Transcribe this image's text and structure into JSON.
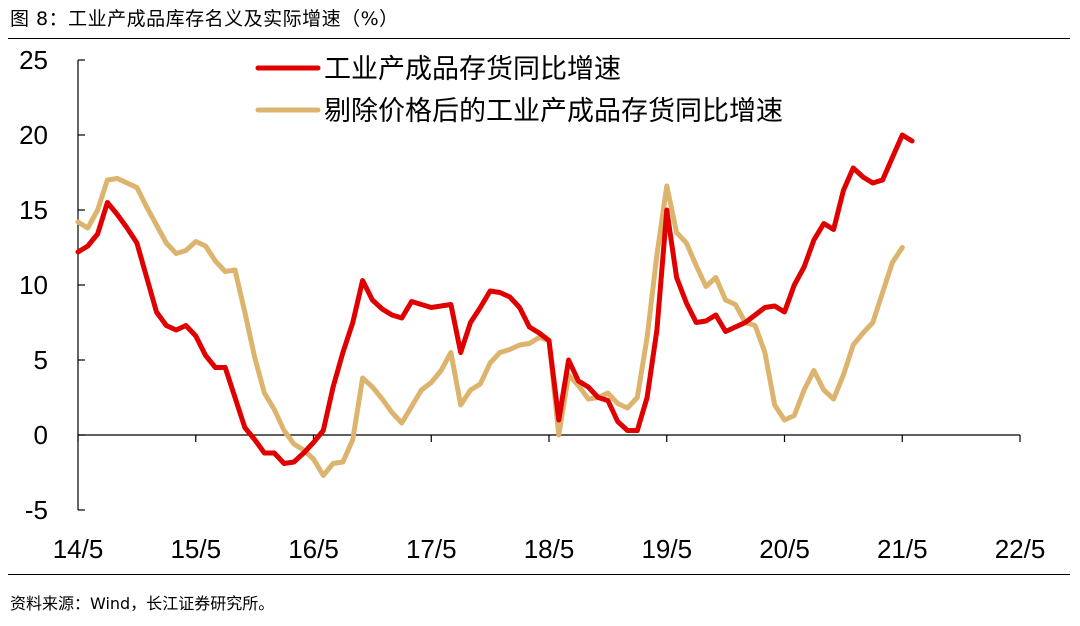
{
  "figure_title": "图 8：工业产成品库存名义及实际增速（%）",
  "source": "资料来源：Wind，长江证券研究所。",
  "colors": {
    "nominal": "#e00000",
    "real": "#dcb46e"
  },
  "chart_data": {
    "type": "line",
    "title": "工业产成品库存名义及实际增速（%）",
    "xlabel": "",
    "ylabel": "%",
    "x_range": [
      0,
      96
    ],
    "ylim": [
      -5,
      25
    ],
    "yticks": [
      25,
      20,
      15,
      10,
      5,
      0,
      -5
    ],
    "x_tick_labels": [
      "14/5",
      "15/5",
      "16/5",
      "17/5",
      "18/5",
      "19/5",
      "20/5",
      "21/5",
      "22/5"
    ],
    "x_tick_positions": [
      0,
      12,
      24,
      36,
      48,
      60,
      72,
      84,
      96
    ],
    "legend_position": "top",
    "series": [
      {
        "name": "工业产成品存货同比增速",
        "points": [
          [
            0,
            12.2
          ],
          [
            1,
            12.6
          ],
          [
            2,
            13.4
          ],
          [
            3,
            15.5
          ],
          [
            4,
            14.7
          ],
          [
            5,
            13.8
          ],
          [
            6,
            12.8
          ],
          [
            7,
            10.5
          ],
          [
            8,
            8.2
          ],
          [
            9,
            7.3
          ],
          [
            10,
            7.0
          ],
          [
            11,
            7.3
          ],
          [
            12,
            6.6
          ],
          [
            13,
            5.3
          ],
          [
            14,
            4.5
          ],
          [
            15,
            4.5
          ],
          [
            16,
            2.5
          ],
          [
            17,
            0.5
          ],
          [
            18,
            -0.3
          ],
          [
            19,
            -1.2
          ],
          [
            20,
            -1.2
          ],
          [
            21,
            -1.9
          ],
          [
            22,
            -1.8
          ],
          [
            23,
            -1.2
          ],
          [
            24,
            -0.5
          ],
          [
            25,
            0.3
          ],
          [
            26,
            3.2
          ],
          [
            27,
            5.5
          ],
          [
            28,
            7.5
          ],
          [
            29,
            10.3
          ],
          [
            30,
            9.0
          ],
          [
            31,
            8.4
          ],
          [
            32,
            8.0
          ],
          [
            33,
            7.8
          ],
          [
            34,
            8.9
          ],
          [
            35,
            8.7
          ],
          [
            36,
            8.5
          ],
          [
            37,
            8.6
          ],
          [
            38,
            8.7
          ],
          [
            39,
            5.5
          ],
          [
            40,
            7.5
          ],
          [
            41,
            8.5
          ],
          [
            42,
            9.6
          ],
          [
            43,
            9.5
          ],
          [
            44,
            9.2
          ],
          [
            45,
            8.5
          ],
          [
            46,
            7.2
          ],
          [
            47,
            6.8
          ],
          [
            48,
            6.3
          ],
          [
            49,
            1.0
          ],
          [
            50,
            5.0
          ],
          [
            51,
            3.6
          ],
          [
            52,
            3.2
          ],
          [
            53,
            2.5
          ],
          [
            54,
            2.3
          ],
          [
            55,
            0.9
          ],
          [
            56,
            0.3
          ],
          [
            57,
            0.3
          ],
          [
            58,
            2.5
          ],
          [
            59,
            7.0
          ],
          [
            60,
            15.0
          ],
          [
            61,
            10.5
          ],
          [
            62,
            8.8
          ],
          [
            63,
            7.5
          ],
          [
            64,
            7.6
          ],
          [
            65,
            8.0
          ],
          [
            66,
            6.9
          ],
          [
            67,
            7.2
          ],
          [
            68,
            7.5
          ],
          [
            69,
            8.0
          ],
          [
            70,
            8.5
          ],
          [
            71,
            8.6
          ],
          [
            72,
            8.2
          ],
          [
            73,
            10.0
          ],
          [
            74,
            11.2
          ],
          [
            75,
            13.0
          ],
          [
            76,
            14.1
          ],
          [
            77,
            13.7
          ],
          [
            78,
            16.3
          ],
          [
            79,
            17.8
          ],
          [
            80,
            17.2
          ],
          [
            81,
            16.8
          ],
          [
            82,
            17.0
          ],
          [
            83,
            18.5
          ],
          [
            84,
            20.0
          ],
          [
            85,
            19.6
          ]
        ]
      },
      {
        "name": "剔除价格后的工业产成品存货同比增速",
        "points": [
          [
            0,
            14.2
          ],
          [
            1,
            13.8
          ],
          [
            2,
            15.0
          ],
          [
            3,
            17.0
          ],
          [
            4,
            17.1
          ],
          [
            5,
            16.8
          ],
          [
            6,
            16.5
          ],
          [
            7,
            15.2
          ],
          [
            8,
            14.0
          ],
          [
            9,
            12.8
          ],
          [
            10,
            12.1
          ],
          [
            11,
            12.3
          ],
          [
            12,
            12.9
          ],
          [
            13,
            12.6
          ],
          [
            14,
            11.6
          ],
          [
            15,
            10.9
          ],
          [
            16,
            11.0
          ],
          [
            17,
            8.2
          ],
          [
            18,
            5.2
          ],
          [
            19,
            2.8
          ],
          [
            20,
            1.7
          ],
          [
            21,
            0.3
          ],
          [
            22,
            -0.6
          ],
          [
            23,
            -1.0
          ],
          [
            24,
            -1.6
          ],
          [
            25,
            -2.7
          ],
          [
            26,
            -1.9
          ],
          [
            27,
            -1.8
          ],
          [
            28,
            -0.3
          ],
          [
            29,
            3.8
          ],
          [
            30,
            3.2
          ],
          [
            31,
            2.4
          ],
          [
            32,
            1.5
          ],
          [
            33,
            0.8
          ],
          [
            34,
            1.9
          ],
          [
            35,
            3.0
          ],
          [
            36,
            3.5
          ],
          [
            37,
            4.3
          ],
          [
            38,
            5.5
          ],
          [
            39,
            2.0
          ],
          [
            40,
            3.0
          ],
          [
            41,
            3.4
          ],
          [
            42,
            4.8
          ],
          [
            43,
            5.5
          ],
          [
            44,
            5.7
          ],
          [
            45,
            6.0
          ],
          [
            46,
            6.1
          ],
          [
            47,
            6.5
          ],
          [
            48,
            6.3
          ],
          [
            49,
            0.0
          ],
          [
            50,
            4.0
          ],
          [
            51,
            3.3
          ],
          [
            52,
            2.4
          ],
          [
            53,
            2.5
          ],
          [
            54,
            2.8
          ],
          [
            55,
            2.1
          ],
          [
            56,
            1.8
          ],
          [
            57,
            2.5
          ],
          [
            58,
            6.5
          ],
          [
            59,
            12.0
          ],
          [
            60,
            16.6
          ],
          [
            61,
            13.5
          ],
          [
            62,
            12.8
          ],
          [
            63,
            11.3
          ],
          [
            64,
            9.9
          ],
          [
            65,
            10.5
          ],
          [
            66,
            9.0
          ],
          [
            67,
            8.7
          ],
          [
            68,
            7.5
          ],
          [
            69,
            7.3
          ],
          [
            70,
            5.5
          ],
          [
            71,
            2.0
          ],
          [
            72,
            1.0
          ],
          [
            73,
            1.3
          ],
          [
            74,
            3.0
          ],
          [
            75,
            4.3
          ],
          [
            76,
            3.0
          ],
          [
            77,
            2.4
          ],
          [
            78,
            4.0
          ],
          [
            79,
            6.0
          ],
          [
            80,
            6.8
          ],
          [
            81,
            7.5
          ],
          [
            82,
            9.5
          ],
          [
            83,
            11.5
          ],
          [
            84,
            12.5
          ]
        ]
      }
    ]
  }
}
